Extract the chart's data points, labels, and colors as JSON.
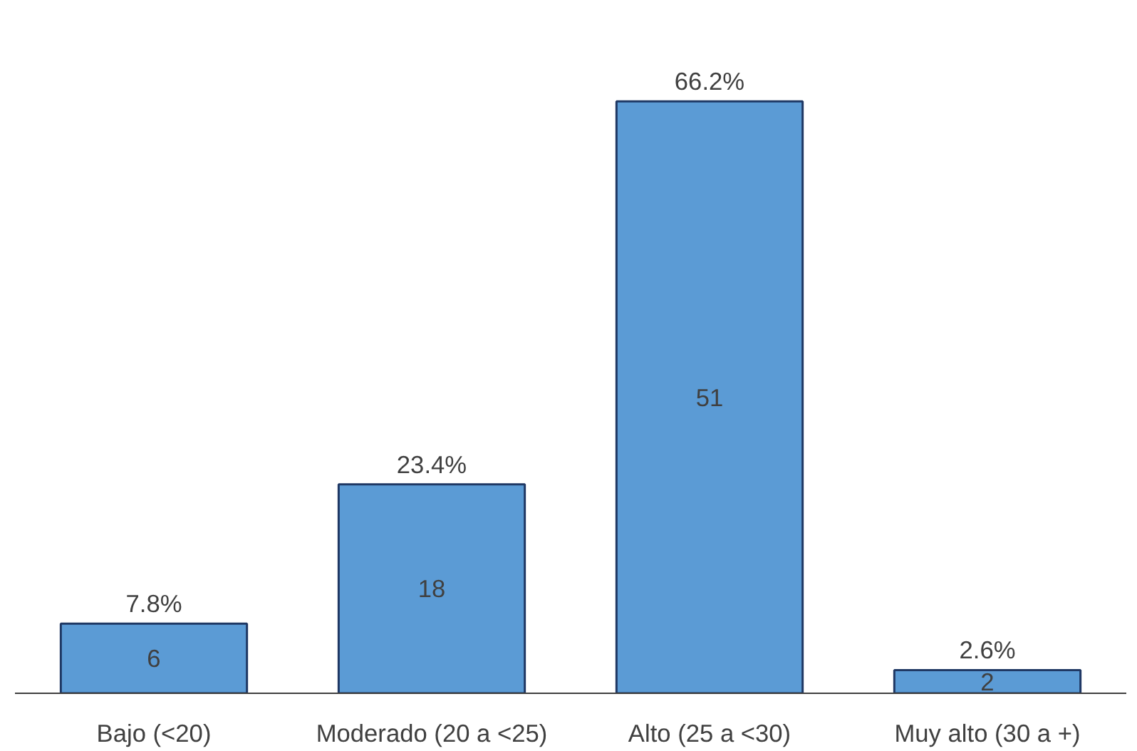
{
  "chart_data": {
    "type": "bar",
    "categories": [
      "Bajo (<20)",
      "Moderado (20 a <25)",
      "Alto (25 a <30)",
      "Muy alto (30 a +)"
    ],
    "values": [
      6,
      18,
      51,
      2
    ],
    "color": "#5b9bd5",
    "data_labels": true,
    "grid": false,
    "annotations": [
      {
        "text": "7.8%",
        "x": "Bajo (<20)",
        "y": 6
      },
      {
        "text": "23.4%",
        "x": "Moderado (20 a <25)",
        "y": 18
      },
      {
        "text": "66.2%",
        "x": "Alto (25 a <30)",
        "y": 51
      },
      {
        "text": "2.6%",
        "x": "Muy alto (30 a +)",
        "y": 2
      }
    ]
  }
}
